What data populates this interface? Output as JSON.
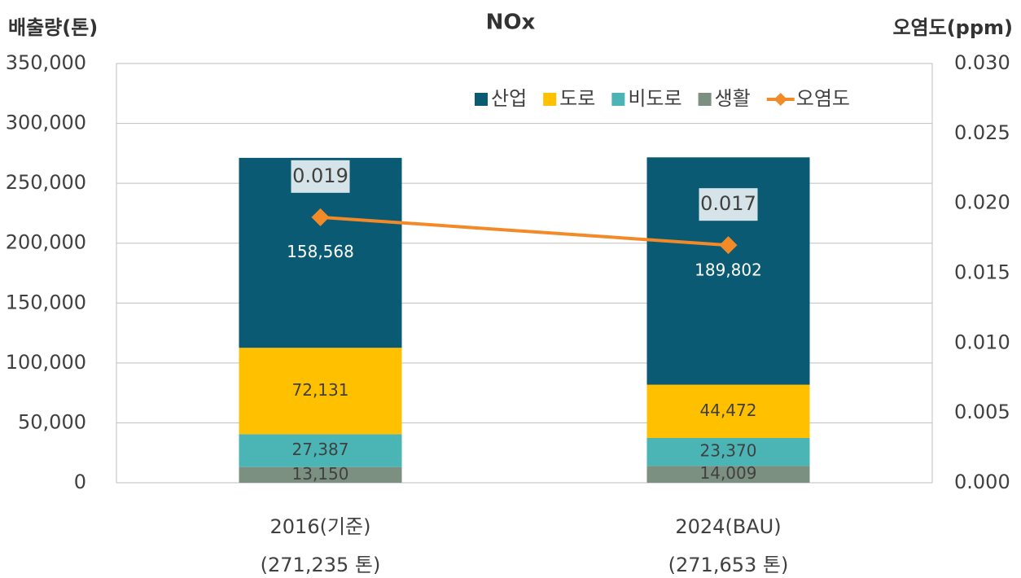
{
  "chart_data": {
    "type": "stacked-bar-line",
    "title": "NOx",
    "y_axis_label": "배출량(톤)",
    "y2_axis_label": "오염도(ppm)",
    "categories": [
      [
        "2016(기준)",
        "(271,235 톤)"
      ],
      [
        "2024(BAU)",
        "(271,653 톤)"
      ]
    ],
    "series": [
      {
        "name": "산업",
        "color": "#0b5a73",
        "values": [
          158568,
          189802
        ],
        "value_labels": [
          "158,568",
          "189,802"
        ]
      },
      {
        "name": "도로",
        "color": "#ffc000",
        "values": [
          72131,
          44472
        ],
        "value_labels": [
          "72,131",
          "44,472"
        ]
      },
      {
        "name": "비도로",
        "color": "#4bb5b5",
        "values": [
          27387,
          23370
        ],
        "value_labels": [
          "27,387",
          "23,370"
        ]
      },
      {
        "name": "생활",
        "color": "#7b9080",
        "values": [
          13150,
          14009
        ],
        "value_labels": [
          "13,150",
          "14,009"
        ]
      },
      {
        "name": "오염도",
        "type": "line",
        "axis": "y2",
        "color": "#f28a28",
        "values": [
          0.019,
          0.017
        ]
      }
    ],
    "ylim": [
      0,
      350000
    ],
    "yticks": [
      0,
      {
        "value": 50000,
        "label": "50,000"
      },
      {
        "value": 100000,
        "label": "100,000"
      },
      {
        "value": 150000,
        "label": "150,000"
      },
      {
        "value": 200000,
        "label": "200,000"
      },
      {
        "value": 250000,
        "label": "250,000"
      },
      {
        "value": 300000,
        "label": "300,000"
      },
      {
        "value": 350000,
        "label": "350,000"
      }
    ],
    "y2lim": [
      0,
      0.03
    ],
    "y2ticks": [
      {
        "value": 0,
        "label": "0.000"
      },
      0.005,
      {
        "value": 0.01,
        "label": "0.010"
      },
      0.015,
      {
        "value": 0.02,
        "label": "0.020"
      },
      0.025,
      {
        "value": 0.03,
        "label": "0.030"
      }
    ],
    "grid": true,
    "legend": "top-right"
  }
}
